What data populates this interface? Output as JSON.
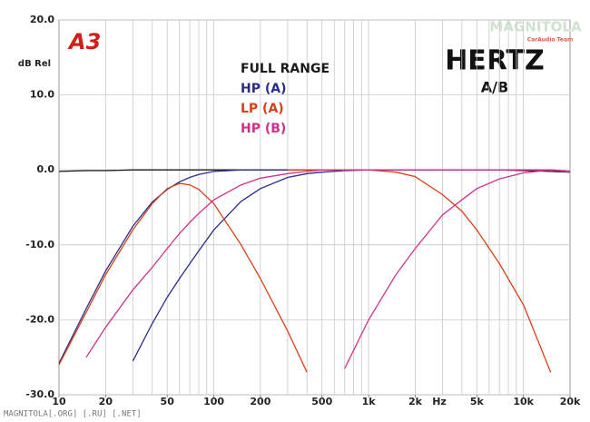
{
  "chart_data": {
    "type": "line",
    "logo": "A3",
    "title": "HERTZ",
    "subtitle": "A/B",
    "y_label": "dB Rel",
    "x_label": "Hz",
    "watermark": "MAGNITOLA",
    "watermark_sub": "CarAudio Team",
    "footer": "MAGNITOLA[.ORG] [.RU] [.NET]",
    "log_x": true,
    "x": [
      10,
      15,
      20,
      30,
      40,
      50,
      60,
      70,
      80,
      100,
      150,
      200,
      300,
      400,
      500,
      700,
      1000,
      1500,
      2000,
      3000,
      4000,
      5000,
      7000,
      10000,
      15000,
      20000
    ],
    "series": [
      {
        "name": "FULL RANGE",
        "color": "#1a1a1a",
        "curves": [
          {
            "values": [
              -0.2,
              -0.1,
              -0.1,
              0,
              0,
              0,
              0,
              0,
              0,
              0,
              0,
              0,
              0,
              0,
              0,
              0,
              0,
              0,
              0,
              0,
              0,
              0,
              0,
              -0.1,
              -0.2,
              -0.3
            ]
          }
        ]
      },
      {
        "name": "HP (A)",
        "color": "#2b2b8c",
        "curves": [
          {
            "values": [
              -25.8,
              -18.5,
              -13.5,
              -7.5,
              -4.3,
              -2.6,
              -1.6,
              -1.0,
              -0.6,
              -0.2,
              0,
              0,
              0,
              0,
              0,
              0,
              0,
              0,
              0,
              0,
              0,
              0,
              0,
              0,
              0,
              -0.2
            ]
          },
          {
            "values": [
              null,
              null,
              null,
              -25.5,
              -20.5,
              -17,
              -14.5,
              -12.5,
              -10.8,
              -8,
              -4.2,
              -2.5,
              -1.0,
              -0.5,
              -0.3,
              -0.1,
              0,
              0,
              0,
              0,
              0,
              0,
              0,
              0,
              0,
              -0.2
            ]
          }
        ]
      },
      {
        "name": "LP (A)",
        "color": "#d8401a",
        "curves": [
          {
            "values": [
              -26,
              -19,
              -14,
              -8,
              -4.5,
              -2.5,
              -1.8,
              -2.0,
              -2.6,
              -4.5,
              -10,
              -14.5,
              -21.5,
              -27,
              null,
              null,
              null,
              null,
              null,
              null,
              null,
              null,
              null,
              null,
              null,
              null
            ]
          },
          {
            "values": [
              null,
              null,
              null,
              null,
              null,
              null,
              null,
              null,
              null,
              null,
              null,
              null,
              0,
              0,
              0,
              0,
              0,
              -0.3,
              -0.9,
              -3.3,
              -5.5,
              -8,
              -12.5,
              -18,
              -27,
              null
            ]
          }
        ]
      },
      {
        "name": "HP (B)",
        "color": "#d0308a",
        "curves": [
          {
            "values": [
              null,
              -25,
              -21,
              -16,
              -13,
              -10.5,
              -8.5,
              -7,
              -5.8,
              -4,
              -2,
              -1.1,
              -0.5,
              -0.2,
              0,
              0,
              0,
              0,
              0,
              0,
              0,
              0,
              0,
              0,
              0,
              -0.2
            ]
          },
          {
            "values": [
              null,
              null,
              null,
              null,
              null,
              null,
              null,
              null,
              null,
              null,
              null,
              null,
              null,
              null,
              null,
              -26.5,
              -20,
              -14,
              -10.5,
              -6,
              -4,
              -2.5,
              -1.2,
              -0.4,
              0,
              -0.3
            ]
          }
        ]
      }
    ],
    "xlim": [
      10,
      20000
    ],
    "ylim": [
      -30,
      20
    ],
    "xticks": [
      10,
      20,
      50,
      100,
      200,
      500,
      {
        "value": 1000,
        "label": "1k"
      },
      {
        "value": 2000,
        "label": "2k"
      },
      {
        "value": 5000,
        "label": "5k"
      },
      {
        "value": 10000,
        "label": "10k"
      },
      {
        "value": 20000,
        "label": "20k"
      }
    ],
    "xgrid": [
      20,
      30,
      40,
      50,
      60,
      70,
      80,
      90,
      100,
      200,
      300,
      400,
      500,
      600,
      700,
      800,
      900,
      1000,
      2000,
      3000,
      4000,
      5000,
      6000,
      7000,
      8000,
      9000,
      10000
    ],
    "yticks": [
      {
        "value": 20,
        "label": "20.0"
      },
      {
        "value": 10,
        "label": "10.0"
      },
      {
        "value": 0,
        "label": "0.0"
      },
      {
        "value": -10,
        "label": "-10.0"
      },
      {
        "value": -20,
        "label": "-20.0"
      },
      {
        "value": -30,
        "label": "-30.0"
      }
    ],
    "grid": true
  }
}
